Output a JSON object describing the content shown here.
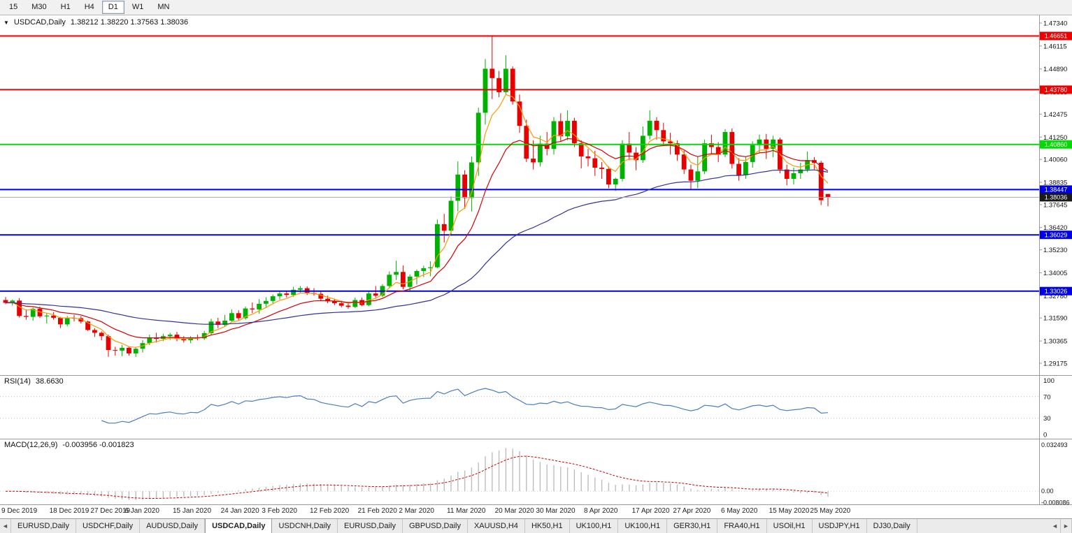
{
  "toolbar": {
    "timeframes": [
      "15",
      "M30",
      "H1",
      "H4",
      "D1",
      "W1",
      "MN"
    ],
    "active": "D1"
  },
  "chart": {
    "title": "USDCAD,Daily",
    "ohlc": "1.38212 1.38220 1.37563 1.38036",
    "dropdown_icon": "▼",
    "colors": {
      "bull": "#00B200",
      "bear": "#E60000",
      "current_price_line": "#a8a8a8",
      "current_badge": "#1a1a1a"
    },
    "price_range": [
      1.2854,
      1.4775
    ],
    "y_axis": [
      "1.47340",
      "1.46115",
      "1.44890",
      "1.43665",
      "1.42475",
      "1.41250",
      "1.40060",
      "1.38835",
      "1.37645",
      "1.36420",
      "1.35230",
      "1.34005",
      "1.32780",
      "1.31590",
      "1.30365",
      "1.29175"
    ],
    "hlines": [
      {
        "value": 1.46651,
        "label": "1.46651",
        "color": "#EE0000",
        "width": 2
      },
      {
        "value": 1.4378,
        "label": "1.43780",
        "color": "#EE0000",
        "width": 2
      },
      {
        "value": 1.4086,
        "label": "1.40860",
        "color": "#00DC00",
        "width": 2
      },
      {
        "value": 1.38447,
        "label": "1.38447",
        "color": "#0000E6",
        "width": 2
      },
      {
        "value": 1.36029,
        "label": "1.36029",
        "color": "#0000E6",
        "width": 2
      },
      {
        "value": 1.33026,
        "label": "1.33026",
        "color": "#0000E6",
        "width": 2
      }
    ],
    "current_price": {
      "value": 1.38036,
      "label": "1.38036"
    }
  },
  "chart_data": {
    "type": "candlestick",
    "symbol": "USDCAD",
    "timeframe": "Daily",
    "note": "OHLC per bar, Dec 9 2019 - May 27 2020",
    "candles": [
      [
        1.3255,
        1.3271,
        1.3233,
        1.324
      ],
      [
        1.324,
        1.3258,
        1.3225,
        1.3252
      ],
      [
        1.3252,
        1.3265,
        1.3162,
        1.317
      ],
      [
        1.317,
        1.3205,
        1.315,
        1.3165
      ],
      [
        1.3165,
        1.3215,
        1.3145,
        1.3208
      ],
      [
        1.3208,
        1.322,
        1.316,
        1.3168
      ],
      [
        1.3168,
        1.3185,
        1.313,
        1.3172
      ],
      [
        1.3172,
        1.319,
        1.315,
        1.316
      ],
      [
        1.316,
        1.3165,
        1.3105,
        1.3125
      ],
      [
        1.3125,
        1.317,
        1.3115,
        1.316
      ],
      [
        1.316,
        1.3175,
        1.314,
        1.3158
      ],
      [
        1.3158,
        1.317,
        1.313,
        1.314
      ],
      [
        1.314,
        1.3145,
        1.309,
        1.3095
      ],
      [
        1.3095,
        1.3105,
        1.3058,
        1.308
      ],
      [
        1.308,
        1.3088,
        1.304,
        1.3062
      ],
      [
        1.3062,
        1.307,
        1.2952,
        1.2988
      ],
      [
        1.2988,
        1.3005,
        1.2958,
        1.2985
      ],
      [
        1.2985,
        1.3015,
        1.2955,
        1.3
      ],
      [
        1.3,
        1.3008,
        1.2958,
        1.297
      ],
      [
        1.297,
        1.3005,
        1.2952,
        1.2995
      ],
      [
        1.2995,
        1.304,
        1.2975,
        1.3025
      ],
      [
        1.3025,
        1.307,
        1.3015,
        1.3055
      ],
      [
        1.3055,
        1.308,
        1.3028,
        1.3048
      ],
      [
        1.3048,
        1.3075,
        1.3035,
        1.3062
      ],
      [
        1.3062,
        1.308,
        1.3042,
        1.307
      ],
      [
        1.307,
        1.3085,
        1.3035,
        1.3048
      ],
      [
        1.3048,
        1.3062,
        1.3028,
        1.304
      ],
      [
        1.304,
        1.3062,
        1.3025,
        1.3055
      ],
      [
        1.3055,
        1.307,
        1.304,
        1.305
      ],
      [
        1.305,
        1.309,
        1.3042,
        1.3078
      ],
      [
        1.3078,
        1.3155,
        1.307,
        1.314
      ],
      [
        1.314,
        1.316,
        1.3105,
        1.3122
      ],
      [
        1.3122,
        1.3175,
        1.3112,
        1.3145
      ],
      [
        1.3145,
        1.3205,
        1.314,
        1.3185
      ],
      [
        1.3185,
        1.32,
        1.3148,
        1.3158
      ],
      [
        1.3158,
        1.322,
        1.315,
        1.321
      ],
      [
        1.321,
        1.3242,
        1.3185,
        1.3205
      ],
      [
        1.3205,
        1.326,
        1.3182,
        1.3235
      ],
      [
        1.3235,
        1.327,
        1.3212,
        1.325
      ],
      [
        1.325,
        1.3285,
        1.3238,
        1.3275
      ],
      [
        1.3275,
        1.33,
        1.3258,
        1.329
      ],
      [
        1.329,
        1.3305,
        1.3268,
        1.3282
      ],
      [
        1.3282,
        1.3325,
        1.3272,
        1.331
      ],
      [
        1.331,
        1.333,
        1.3295,
        1.3318
      ],
      [
        1.3318,
        1.3328,
        1.3282,
        1.3292
      ],
      [
        1.3292,
        1.3318,
        1.3278,
        1.3288
      ],
      [
        1.3288,
        1.3305,
        1.3252,
        1.3262
      ],
      [
        1.3262,
        1.3278,
        1.3238,
        1.3248
      ],
      [
        1.3248,
        1.3262,
        1.3228,
        1.3238
      ],
      [
        1.3238,
        1.3252,
        1.3215,
        1.3225
      ],
      [
        1.3225,
        1.3245,
        1.3208,
        1.3218
      ],
      [
        1.3218,
        1.3268,
        1.3212,
        1.3255
      ],
      [
        1.3255,
        1.3268,
        1.3222,
        1.3228
      ],
      [
        1.3228,
        1.3305,
        1.3222,
        1.329
      ],
      [
        1.329,
        1.333,
        1.3268,
        1.3278
      ],
      [
        1.3278,
        1.334,
        1.327,
        1.333
      ],
      [
        1.333,
        1.3408,
        1.332,
        1.339
      ],
      [
        1.339,
        1.3465,
        1.3362,
        1.3405
      ],
      [
        1.3405,
        1.344,
        1.3312,
        1.3325
      ],
      [
        1.3325,
        1.3392,
        1.33,
        1.338
      ],
      [
        1.338,
        1.3418,
        1.3338,
        1.341
      ],
      [
        1.341,
        1.3438,
        1.3378,
        1.3425
      ],
      [
        1.3425,
        1.3462,
        1.3382,
        1.343
      ],
      [
        1.343,
        1.3685,
        1.3425,
        1.366
      ],
      [
        1.366,
        1.3715,
        1.3562,
        1.3625
      ],
      [
        1.3625,
        1.3808,
        1.3598,
        1.3785
      ],
      [
        1.3785,
        1.3995,
        1.3728,
        1.3925
      ],
      [
        1.3925,
        1.3948,
        1.3742,
        1.38
      ],
      [
        1.38,
        1.4022,
        1.3728,
        1.399
      ],
      [
        1.399,
        1.4282,
        1.3918,
        1.4255
      ],
      [
        1.4255,
        1.4542,
        1.4192,
        1.449
      ],
      [
        1.449,
        1.4668,
        1.4328,
        1.444
      ],
      [
        1.444,
        1.4478,
        1.4338,
        1.4365
      ],
      [
        1.4365,
        1.4562,
        1.4352,
        1.449
      ],
      [
        1.449,
        1.4502,
        1.4298,
        1.4315
      ],
      [
        1.4315,
        1.4352,
        1.4148,
        1.4185
      ],
      [
        1.4185,
        1.4218,
        1.3992,
        1.401
      ],
      [
        1.401,
        1.4108,
        1.3952,
        1.399
      ],
      [
        1.399,
        1.4132,
        1.3968,
        1.409
      ],
      [
        1.409,
        1.4152,
        1.4028,
        1.4062
      ],
      [
        1.4062,
        1.4232,
        1.4032,
        1.421
      ],
      [
        1.421,
        1.4252,
        1.4102,
        1.413
      ],
      [
        1.413,
        1.4268,
        1.4108,
        1.4212
      ],
      [
        1.4212,
        1.4228,
        1.4072,
        1.4092
      ],
      [
        1.4092,
        1.4108,
        1.3958,
        1.4022
      ],
      [
        1.4022,
        1.4062,
        1.3968,
        1.4012
      ],
      [
        1.4012,
        1.4052,
        1.3918,
        1.3962
      ],
      [
        1.3962,
        1.3992,
        1.3902,
        1.3955
      ],
      [
        1.3955,
        1.3968,
        1.3852,
        1.3872
      ],
      [
        1.3872,
        1.3908,
        1.3838,
        1.3902
      ],
      [
        1.3902,
        1.4108,
        1.3888,
        1.409
      ],
      [
        1.409,
        1.4152,
        1.4002,
        1.4042
      ],
      [
        1.4042,
        1.4072,
        1.3948,
        1.4002
      ],
      [
        1.4002,
        1.4182,
        1.3988,
        1.4132
      ],
      [
        1.4132,
        1.4268,
        1.4112,
        1.4212
      ],
      [
        1.4212,
        1.4232,
        1.4112,
        1.4162
      ],
      [
        1.4162,
        1.4202,
        1.4078,
        1.4102
      ],
      [
        1.4102,
        1.4148,
        1.4032,
        1.4092
      ],
      [
        1.4092,
        1.4108,
        1.3998,
        1.4032
      ],
      [
        1.4032,
        1.4052,
        1.3928,
        1.3952
      ],
      [
        1.3952,
        1.3978,
        1.3848,
        1.3892
      ],
      [
        1.3892,
        1.4022,
        1.3852,
        1.3942
      ],
      [
        1.3942,
        1.4112,
        1.3928,
        1.4092
      ],
      [
        1.4092,
        1.4138,
        1.4032,
        1.4072
      ],
      [
        1.4072,
        1.4098,
        1.3992,
        1.4032
      ],
      [
        1.4032,
        1.4168,
        1.4018,
        1.4152
      ],
      [
        1.4152,
        1.4172,
        1.3958,
        1.3982
      ],
      [
        1.3982,
        1.4012,
        1.3892,
        1.3922
      ],
      [
        1.3922,
        1.4022,
        1.3902,
        1.3992
      ],
      [
        1.3992,
        1.4102,
        1.3962,
        1.4082
      ],
      [
        1.4082,
        1.4138,
        1.4038,
        1.4112
      ],
      [
        1.4112,
        1.4142,
        1.4008,
        1.4062
      ],
      [
        1.4062,
        1.4132,
        1.4018,
        1.4112
      ],
      [
        1.4112,
        1.4122,
        1.3932,
        1.3952
      ],
      [
        1.3952,
        1.3978,
        1.3868,
        1.3902
      ],
      [
        1.3902,
        1.3962,
        1.3872,
        1.3932
      ],
      [
        1.3932,
        1.3988,
        1.3902,
        1.3952
      ],
      [
        1.3952,
        1.4048,
        1.3938,
        1.4002
      ],
      [
        1.4002,
        1.4018,
        1.3952,
        1.3988
      ],
      [
        1.3988,
        1.3998,
        1.3762,
        1.3788
      ],
      [
        1.38212,
        1.3822,
        1.37563,
        1.38036
      ]
    ],
    "x_labels": [
      {
        "text": "9 Dec 2019",
        "index": 0
      },
      {
        "text": "18 Dec 2019",
        "index": 7
      },
      {
        "text": "27 Dec 2019",
        "index": 13
      },
      {
        "text": "6 Jan 2020",
        "index": 18
      },
      {
        "text": "15 Jan 2020",
        "index": 25
      },
      {
        "text": "24 Jan 2020",
        "index": 32
      },
      {
        "text": "3 Feb 2020",
        "index": 38
      },
      {
        "text": "12 Feb 2020",
        "index": 45
      },
      {
        "text": "21 Feb 2020",
        "index": 52
      },
      {
        "text": "2 Mar 2020",
        "index": 58
      },
      {
        "text": "11 Mar 2020",
        "index": 65
      },
      {
        "text": "20 Mar 2020",
        "index": 72
      },
      {
        "text": "30 Mar 2020",
        "index": 78
      },
      {
        "text": "8 Apr 2020",
        "index": 85
      },
      {
        "text": "17 Apr 2020",
        "index": 92
      },
      {
        "text": "27 Apr 2020",
        "index": 98
      },
      {
        "text": "6 May 2020",
        "index": 105
      },
      {
        "text": "15 May 2020",
        "index": 112
      },
      {
        "text": "25 May 2020",
        "index": 118
      }
    ],
    "moving_averages": [
      {
        "name": "ma-fast",
        "period": 5,
        "color": "#FF9900"
      },
      {
        "name": "ma-mid",
        "period": 13,
        "color": "#D60000"
      },
      {
        "name": "ma-slow",
        "period": 50,
        "color": "#333399"
      }
    ]
  },
  "rsi": {
    "label": "RSI(14)",
    "value": "38.6630",
    "period": 14,
    "axis": [
      "100",
      "70",
      "30",
      "0"
    ],
    "levels": [
      70,
      30
    ],
    "range": [
      -8,
      110
    ],
    "color": "#4a7ebb"
  },
  "macd": {
    "label": "MACD(12,26,9)",
    "values": "-0.003956 -0.001823",
    "fast": 12,
    "slow": 26,
    "signal": 9,
    "axis": [
      {
        "text": "0.032493",
        "value": 0.032493
      },
      {
        "text": "0.00",
        "value": 0
      },
      {
        "text": "-0.008086",
        "value": -0.008086
      }
    ],
    "range": [
      -0.0092,
      0.0368
    ],
    "hist_color": "#bdbdbd",
    "signal_color": "#cc0000"
  },
  "tabs": {
    "items": [
      "EURUSD,Daily",
      "USDCHF,Daily",
      "AUDUSD,Daily",
      "USDCAD,Daily",
      "USDCNH,Daily",
      "EURUSD,Daily",
      "GBPUSD,Daily",
      "XAUUSD,H4",
      "HK50,H1",
      "UK100,H1",
      "UK100,H1",
      "GER30,H1",
      "FRA40,H1",
      "USOil,H1",
      "USDJPY,H1",
      "DJ30,Daily"
    ],
    "selected_index": 3
  }
}
